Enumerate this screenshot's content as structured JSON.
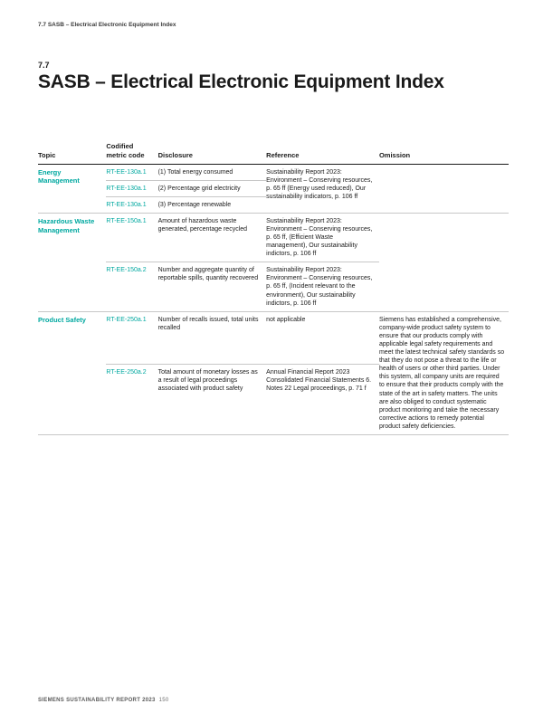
{
  "runningHead": "7.7 SASB – Electrical Electronic Equipment Index",
  "sectionNum": "7.7",
  "title": "SASB – Electrical Electronic Equipment Index",
  "columns": [
    "Topic",
    "Codified metric code",
    "Disclosure",
    "Reference",
    "Omission"
  ],
  "rows": [
    {
      "topic": "Energy Management",
      "topicRowspan": 3,
      "code": "RT-EE-130a.1",
      "disclosure": "(1) Total energy consumed",
      "reference": "Sustainability Report 2023: Environment – Conserving resources, p. 65 ff (Energy used reduced), Our sustainability indicators, p. 106 ff",
      "referenceRowspan": 3,
      "omission": "",
      "omissionRowspan": 3
    },
    {
      "code": "RT-EE-130a.1",
      "disclosure": "(2) Percentage grid electricity"
    },
    {
      "code": "RT-EE-130a.1",
      "disclosure": "(3) Percentage renewable"
    },
    {
      "topic": "Hazardous Waste Management",
      "topicRowspan": 2,
      "code": "RT-EE-150a.1",
      "disclosure": "Amount of hazardous waste generated, percentage recycled",
      "reference": "Sustainability Report 2023: Environment – Conserving resources, p. 65 ff, (Efficient Waste management), Our sustainability indictors, p. 106 ff",
      "omission": "",
      "omissionRowspan": 2
    },
    {
      "code": "RT-EE-150a.2",
      "disclosure": "Number and aggregate quantity of reportable spills, quantity recovered",
      "reference": "Sustainability Report 2023: Environment – Conserving resources, p. 65 ff, (Incident relevant to the environment), Our sustainability indictors, p. 106 ff"
    },
    {
      "topic": "Product Safety",
      "topicRowspan": 2,
      "code": "RT-EE-250a.1",
      "disclosure": "Number of recalls issued, total units recalled",
      "reference": "not applicable",
      "omission": "Siemens has established a comprehensive, company-wide product safety system to ensure that our products comply with applicable legal safety requirements and meet the latest technical safety standards so that they do not pose a threat to the life or health of users or other third parties. Under this system, all company units are required to ensure that their products comply with the state of the art in safety matters. The units are also obliged to conduct systematic product monitoring and take the necessary corrective actions to remedy potential product safety deficiencies.",
      "omissionRowspan": 2
    },
    {
      "code": "RT-EE-250a.2",
      "disclosure": "Total amount of monetary losses as a result of legal proceedings associated with product safety",
      "reference": "Annual Financial Report 2023 Consolidated Financial Statements 6. Notes 22 Legal proceedings, p. 71 f"
    }
  ],
  "footer": {
    "label": "SIEMENS SUSTAINABILITY REPORT 2023",
    "page": "150"
  }
}
